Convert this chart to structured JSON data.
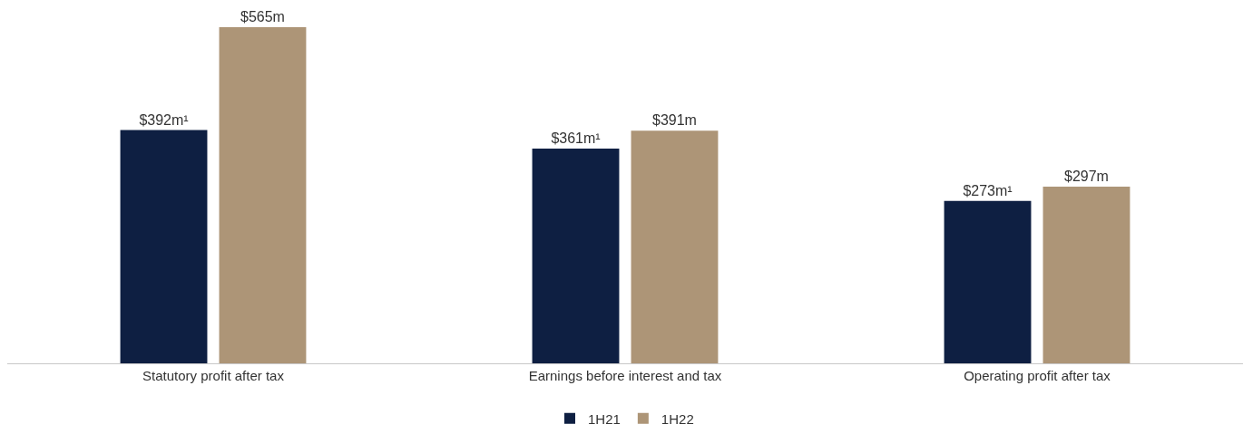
{
  "chart_data": {
    "type": "bar",
    "categories": [
      "Statutory profit after tax",
      "Earnings before interest and tax",
      "Operating profit after tax"
    ],
    "series": [
      {
        "name": "1H21",
        "color": "#0e1f42",
        "values": [
          392,
          361,
          273
        ],
        "value_labels": [
          "$392m¹",
          "$361m¹",
          "$273m¹"
        ]
      },
      {
        "name": "1H22",
        "color": "#ad9577",
        "values": [
          565,
          391,
          297
        ],
        "value_labels": [
          "$565m",
          "$391m",
          "$297m"
        ]
      }
    ],
    "legend": "bottom"
  }
}
